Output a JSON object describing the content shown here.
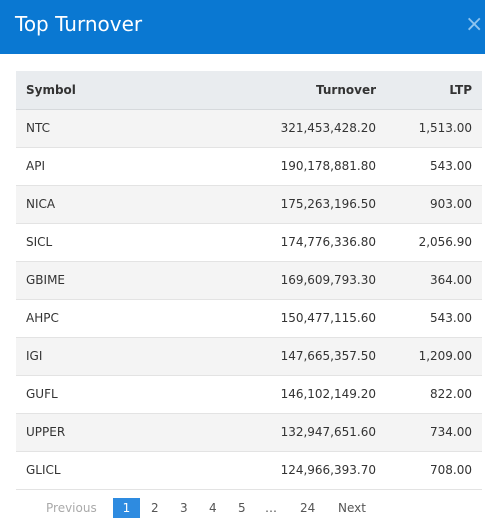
{
  "header": {
    "title": "Top Turnover",
    "close_label": "×"
  },
  "table": {
    "columns": [
      "Symbol",
      "Turnover",
      "LTP"
    ],
    "rows": [
      [
        "NTC",
        "321,453,428.20",
        "1,513.00"
      ],
      [
        "API",
        "190,178,881.80",
        "543.00"
      ],
      [
        "NICA",
        "175,263,196.50",
        "903.00"
      ],
      [
        "SICL",
        "174,776,336.80",
        "2,056.90"
      ],
      [
        "GBIME",
        "169,609,793.30",
        "364.00"
      ],
      [
        "AHPC",
        "150,477,115.60",
        "543.00"
      ],
      [
        "IGI",
        "147,665,357.50",
        "1,209.00"
      ],
      [
        "GUFL",
        "146,102,149.20",
        "822.00"
      ],
      [
        "UPPER",
        "132,947,651.60",
        "734.00"
      ],
      [
        "GLICL",
        "124,966,393.70",
        "708.00"
      ]
    ]
  },
  "pagination": {
    "previous": "Previous",
    "pages": [
      "1",
      "2",
      "3",
      "4",
      "5"
    ],
    "ellipsis": "…",
    "last": "24",
    "next": "Next"
  },
  "colors": {
    "header_bg": "#0a78d2",
    "active_page": "#2e8be0"
  }
}
